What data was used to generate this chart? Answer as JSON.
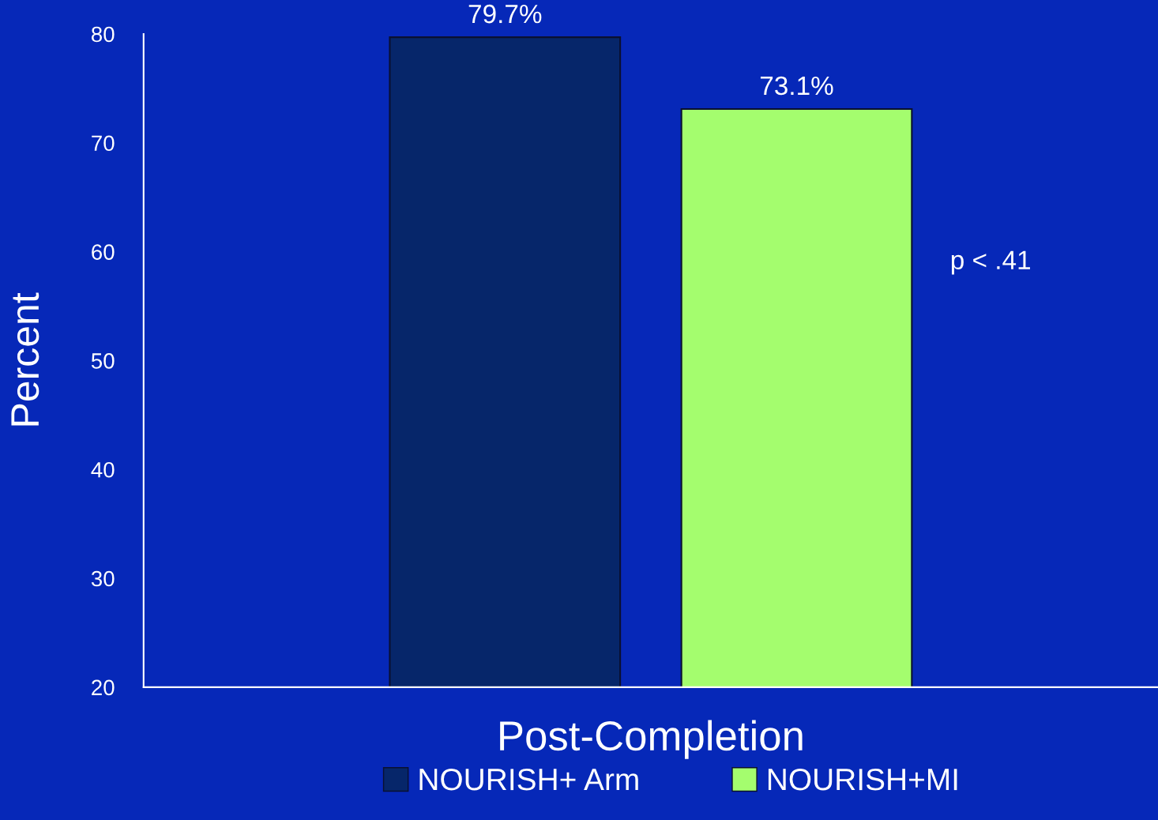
{
  "chart_data": {
    "type": "bar",
    "ylabel": "Percent",
    "categories": [
      "Post-Completion"
    ],
    "series": [
      {
        "name": "NOURISH+ Arm",
        "color": "#06266a",
        "values": [
          79.7
        ],
        "value_labels": [
          "79.7%"
        ]
      },
      {
        "name": "NOURISH+MI",
        "color": "#a4fd6e",
        "values": [
          73.1
        ],
        "value_labels": [
          "73.1%"
        ]
      }
    ],
    "ylim": [
      20,
      80
    ],
    "yticks": [
      20,
      30,
      40,
      50,
      60,
      70,
      80
    ],
    "annotations": [
      "p < .41"
    ],
    "grid": false,
    "legend": "bottom"
  }
}
